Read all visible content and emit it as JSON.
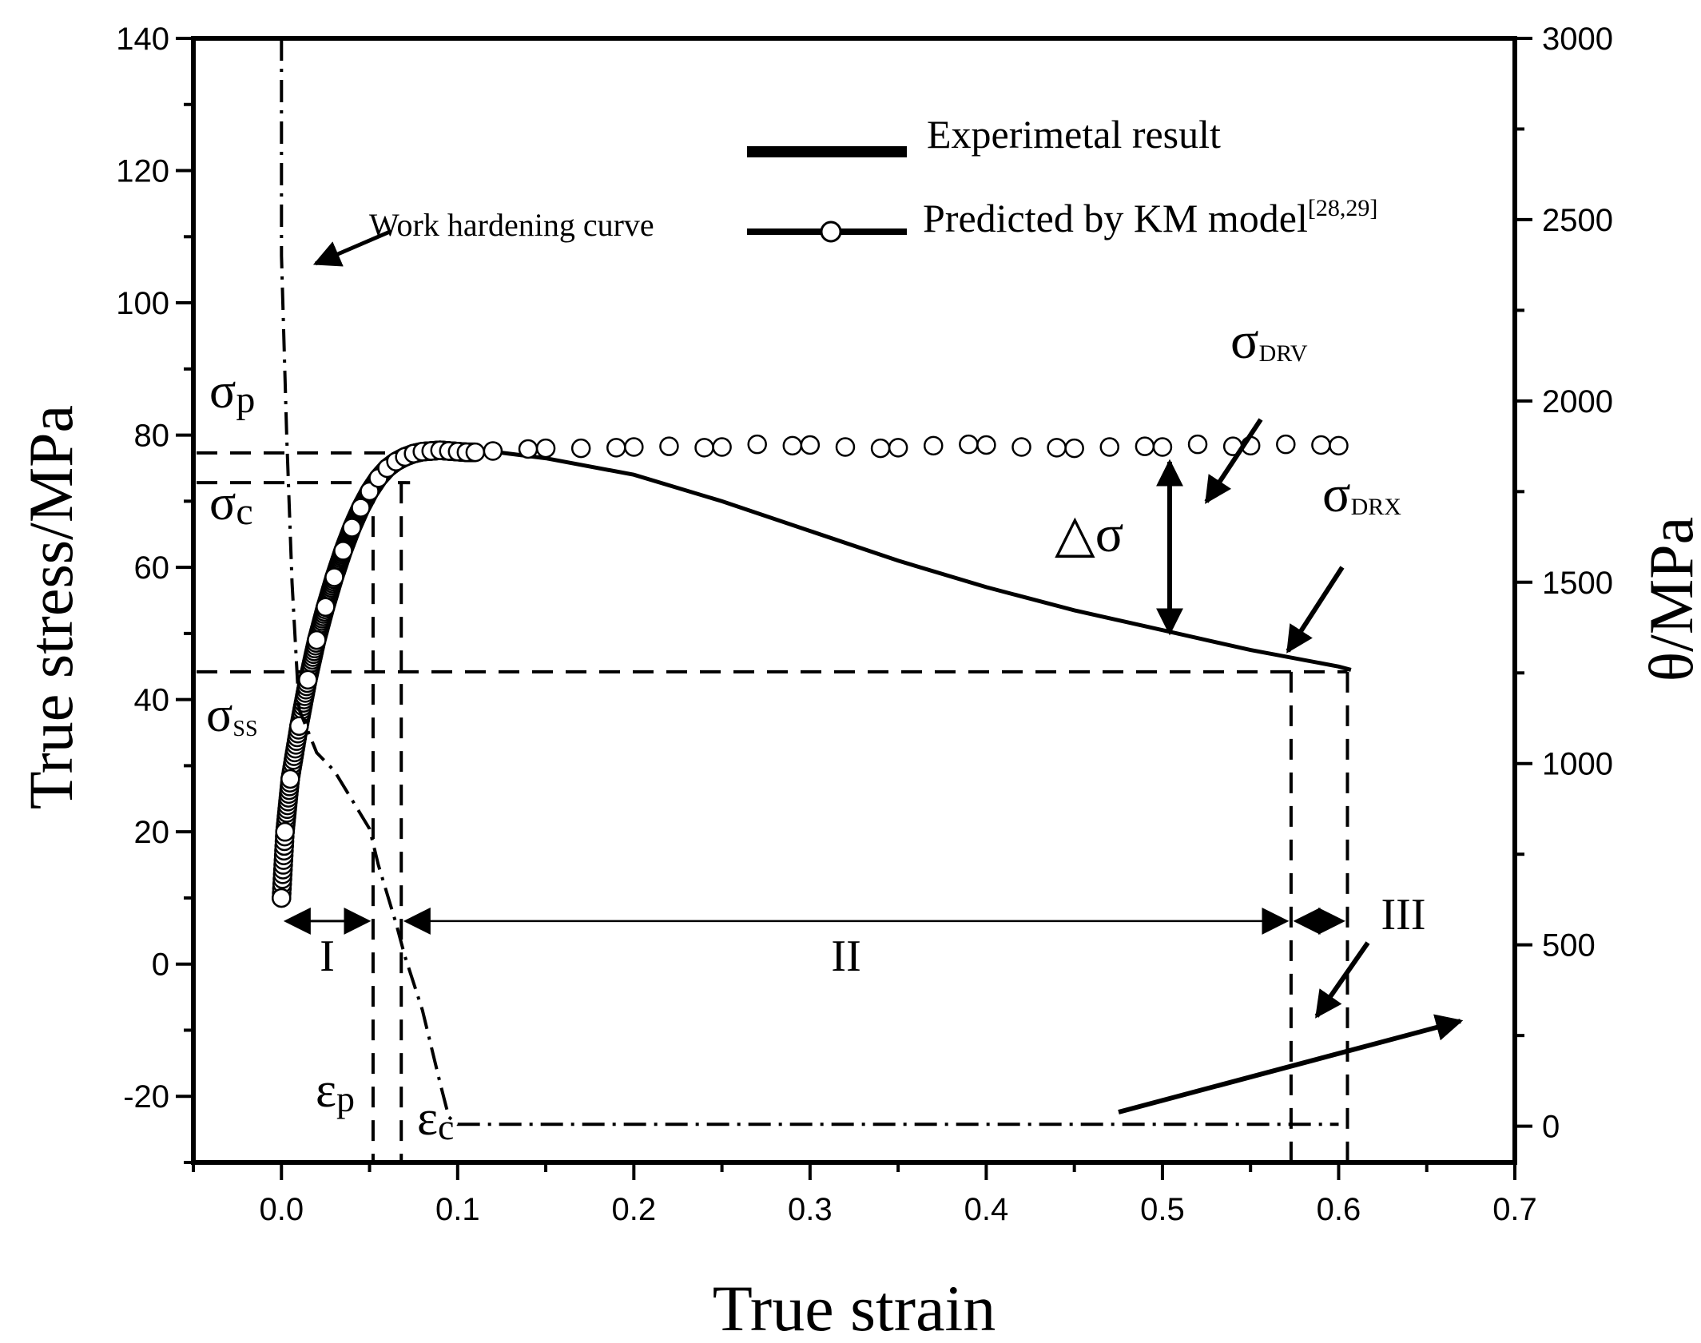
{
  "chart_data": {
    "type": "line",
    "x_axis": {
      "label": "True strain",
      "range": [
        -0.05,
        0.7
      ],
      "ticks": [
        "0.0",
        "0.1",
        "0.2",
        "0.3",
        "0.4",
        "0.5",
        "0.6",
        "0.7"
      ],
      "tick_values": [
        0,
        0.1,
        0.2,
        0.3,
        0.4,
        0.5,
        0.6,
        0.7
      ]
    },
    "y_axis_left": {
      "label": "True stress/MPa",
      "range": [
        -30,
        140
      ],
      "ticks": [
        "-20",
        "0",
        "20",
        "40",
        "60",
        "80",
        "100",
        "120",
        "140"
      ],
      "tick_values": [
        -20,
        0,
        20,
        40,
        60,
        80,
        100,
        120,
        140
      ]
    },
    "y_axis_right": {
      "label": "θ/MPa",
      "range": [
        -100,
        3000
      ],
      "ticks": [
        "0",
        "500",
        "1000",
        "1500",
        "2000",
        "2500",
        "3000"
      ],
      "tick_values": [
        0,
        500,
        1000,
        1500,
        2000,
        2500,
        3000
      ]
    },
    "series": [
      {
        "name": "Experimetal result",
        "axis": "left",
        "style": "solid",
        "x": [
          0.0,
          0.002,
          0.005,
          0.01,
          0.015,
          0.02,
          0.025,
          0.03,
          0.035,
          0.04,
          0.045,
          0.05,
          0.055,
          0.06,
          0.065,
          0.07,
          0.075,
          0.08,
          0.09,
          0.1,
          0.11,
          0.12,
          0.15,
          0.2,
          0.25,
          0.3,
          0.35,
          0.4,
          0.45,
          0.5,
          0.55,
          0.6,
          0.607
        ],
        "y": [
          10,
          20,
          28,
          36,
          43,
          49,
          54,
          58.5,
          62.5,
          66,
          69,
          71.5,
          73.5,
          75,
          76,
          76.7,
          77.2,
          77.5,
          77.8,
          77.9,
          77.8,
          77.5,
          76.5,
          74,
          70,
          65.5,
          61,
          57,
          53.5,
          50.5,
          47.5,
          45,
          44.5
        ]
      },
      {
        "name": "Predicted by KM model",
        "name_superscript": "[28,29]",
        "axis": "left",
        "style": "markers",
        "x": [
          0.0,
          0.002,
          0.005,
          0.01,
          0.015,
          0.02,
          0.025,
          0.03,
          0.035,
          0.04,
          0.045,
          0.05,
          0.055,
          0.06,
          0.065,
          0.07,
          0.075,
          0.08,
          0.085,
          0.09,
          0.095,
          0.1,
          0.105,
          0.11,
          0.12,
          0.14,
          0.15,
          0.17,
          0.19,
          0.2,
          0.22,
          0.24,
          0.25,
          0.27,
          0.29,
          0.3,
          0.32,
          0.34,
          0.35,
          0.37,
          0.39,
          0.4,
          0.42,
          0.44,
          0.45,
          0.47,
          0.49,
          0.5,
          0.52,
          0.54,
          0.55,
          0.57,
          0.59,
          0.6
        ],
        "y": [
          10,
          20,
          28,
          36,
          43,
          49,
          54,
          58.5,
          62.5,
          66,
          69,
          71.5,
          73.5,
          75,
          76,
          76.7,
          77.2,
          77.5,
          77.6,
          77.7,
          77.6,
          77.5,
          77.4,
          77.4,
          77.6,
          77.9,
          78.0,
          78.0,
          78.1,
          78.2,
          78.3,
          78.1,
          78.2,
          78.6,
          78.4,
          78.5,
          78.2,
          78.0,
          78.1,
          78.4,
          78.6,
          78.5,
          78.2,
          78.1,
          78.0,
          78.2,
          78.3,
          78.2,
          78.6,
          78.3,
          78.4,
          78.6,
          78.5,
          78.4
        ]
      },
      {
        "name": "Work hardening curve",
        "axis": "right",
        "style": "dash-dot",
        "x": [
          0.0,
          0.0,
          0.003,
          0.006,
          0.01,
          0.02,
          0.03,
          0.04,
          0.05,
          0.055,
          0.06,
          0.065,
          0.07,
          0.08,
          0.09,
          0.095,
          0.1,
          0.2,
          0.3,
          0.4,
          0.5,
          0.6
        ],
        "y": [
          3000,
          2400,
          1900,
          1500,
          1150,
          1030,
          980,
          900,
          820,
          720,
          640,
          560,
          470,
          320,
          120,
          25,
          5,
          5,
          5,
          5,
          5,
          5
        ]
      }
    ],
    "reference_lines": {
      "stress_levels": [
        77.3,
        72.8,
        44.2
      ],
      "strain_levels": [
        0.052,
        0.068,
        0.573,
        0.605
      ]
    },
    "regions": [
      {
        "label": "I",
        "from": 0.0,
        "to": 0.052
      },
      {
        "label": "II",
        "from": 0.068,
        "to": 0.573
      },
      {
        "label": "III",
        "from": 0.573,
        "to": 0.605
      }
    ],
    "annotations": {
      "work_hardening_label": "Work hardening curve",
      "sigma_p": {
        "base": "σ",
        "sub": "p"
      },
      "sigma_c": {
        "base": "σ",
        "sub": "c"
      },
      "sigma_ss": {
        "base": "σ",
        "sub": "SS"
      },
      "sigma_drv": {
        "base": "σ",
        "sub": "DRV"
      },
      "sigma_drx": {
        "base": "σ",
        "sub": "DRX"
      },
      "delta_sigma": "△σ",
      "eps_p": {
        "base": "ε",
        "sub": "p"
      },
      "eps_c": {
        "base": "ε",
        "sub": "c"
      }
    }
  }
}
